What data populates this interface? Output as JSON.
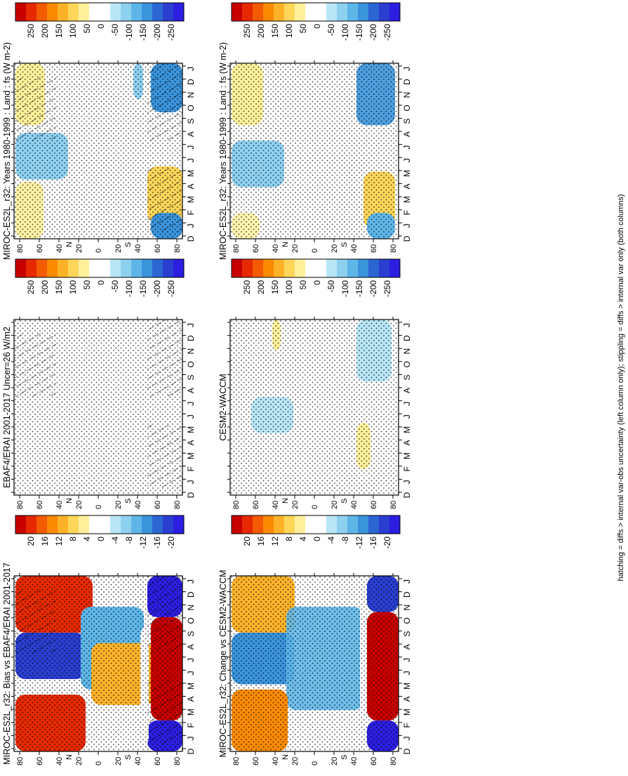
{
  "footnote": "hatching = diffs > internal var-obs uncertainty (left column only); stippling = diffs > internal var only (both columns)",
  "chart_data": [
    {
      "type": "heatmap",
      "panel": "left-top",
      "title": "MIROC-ES2L_r32: Years 1980-1999 : Land : fs (W m-2)",
      "xlabel": "",
      "ylabel": "",
      "x_ticks": [
        "D",
        "J",
        "F",
        "M",
        "A",
        "M",
        "J",
        "J",
        "A",
        "S",
        "O",
        "N",
        "D",
        "J"
      ],
      "y_ticks": [
        "80",
        "60",
        "40",
        "20",
        "0",
        "20",
        "40",
        "60",
        "80"
      ],
      "y_hemisphere_labels": [
        "N",
        "S"
      ],
      "colorbar": {
        "ticks": [
          "250",
          "200",
          "150",
          "100",
          "50",
          "0",
          "-50",
          "-100",
          "-150",
          "-200",
          "-250"
        ],
        "colors": [
          "#c80000",
          "#e52a00",
          "#f45a00",
          "#fb8a00",
          "#fdb22a",
          "#fdd65a",
          "#fef09a",
          "#ffffff",
          "#ffffff",
          "#b8e6f6",
          "#8ed0f0",
          "#5eb6e8",
          "#3a94dc",
          "#2c66d2",
          "#2a3ed0",
          "#2c1ee0"
        ]
      },
      "hatched": true,
      "stippled": true
    },
    {
      "type": "heatmap",
      "panel": "right-top",
      "title": "MIROC-ES2L_r32: Years 1980-1999 : Land : fs (W m-2)",
      "xlabel": "",
      "ylabel": "",
      "x_ticks": [
        "D",
        "J",
        "F",
        "M",
        "A",
        "M",
        "J",
        "J",
        "A",
        "S",
        "O",
        "N",
        "D",
        "J"
      ],
      "y_ticks": [
        "80",
        "60",
        "40",
        "20",
        "0",
        "20",
        "40",
        "60",
        "80"
      ],
      "y_hemisphere_labels": [
        "N",
        "S"
      ],
      "colorbar": {
        "ticks": [
          "250",
          "200",
          "150",
          "100",
          "50",
          "0",
          "-50",
          "-100",
          "-150",
          "-200",
          "-250"
        ],
        "colors": [
          "#c80000",
          "#e52a00",
          "#f45a00",
          "#fb8a00",
          "#fdb22a",
          "#fdd65a",
          "#fef09a",
          "#ffffff",
          "#ffffff",
          "#b8e6f6",
          "#8ed0f0",
          "#5eb6e8",
          "#3a94dc",
          "#2c66d2",
          "#2a3ed0",
          "#2c1ee0"
        ]
      },
      "hatched": false,
      "stippled": true
    },
    {
      "type": "heatmap",
      "panel": "left-middle",
      "title": "EBAF4/ERAI 2001-2017 Uncer=26 W/m2",
      "xlabel": "",
      "ylabel": "",
      "x_ticks": [
        "D",
        "J",
        "F",
        "M",
        "A",
        "M",
        "J",
        "J",
        "A",
        "S",
        "O",
        "N",
        "D",
        "J"
      ],
      "y_ticks": [
        "80",
        "60",
        "40",
        "20",
        "0",
        "20",
        "40",
        "60",
        "80"
      ],
      "y_hemisphere_labels": [
        "N",
        "S"
      ],
      "colorbar": {
        "ticks": [
          "250",
          "200",
          "150",
          "100",
          "50",
          "0",
          "-50",
          "-100",
          "-150",
          "-200",
          "-250"
        ],
        "colors": [
          "#c80000",
          "#e52a00",
          "#f45a00",
          "#fb8a00",
          "#fdb22a",
          "#fdd65a",
          "#fef09a",
          "#ffffff",
          "#ffffff",
          "#b8e6f6",
          "#8ed0f0",
          "#5eb6e8",
          "#3a94dc",
          "#2c66d2",
          "#2a3ed0",
          "#2c1ee0"
        ]
      },
      "hatched": true,
      "stippled": true
    },
    {
      "type": "heatmap",
      "panel": "right-middle",
      "title": "CESM2-WACCM",
      "xlabel": "",
      "ylabel": "",
      "x_ticks": [
        "D",
        "J",
        "F",
        "M",
        "A",
        "M",
        "J",
        "J",
        "A",
        "S",
        "O",
        "N",
        "D",
        "J"
      ],
      "y_ticks": [
        "80",
        "60",
        "40",
        "20",
        "0",
        "20",
        "40",
        "60",
        "80"
      ],
      "y_hemisphere_labels": [
        "N",
        "S"
      ],
      "colorbar": {
        "ticks": [
          "250",
          "200",
          "150",
          "100",
          "50",
          "0",
          "-50",
          "-100",
          "-150",
          "-200",
          "-250"
        ],
        "colors": [
          "#c80000",
          "#e52a00",
          "#f45a00",
          "#fb8a00",
          "#fdb22a",
          "#fdd65a",
          "#fef09a",
          "#ffffff",
          "#ffffff",
          "#b8e6f6",
          "#8ed0f0",
          "#5eb6e8",
          "#3a94dc",
          "#2c66d2",
          "#2a3ed0",
          "#2c1ee0"
        ]
      },
      "hatched": false,
      "stippled": true
    },
    {
      "type": "heatmap",
      "panel": "left-bottom",
      "title": "MIROC-ES2L_r32: Bias vs EBAF4/ERAI 2001-2017",
      "xlabel": "",
      "ylabel": "",
      "x_ticks": [
        "D",
        "J",
        "F",
        "M",
        "A",
        "M",
        "J",
        "J",
        "A",
        "S",
        "O",
        "N",
        "D",
        "J"
      ],
      "y_ticks": [
        "80",
        "60",
        "40",
        "20",
        "0",
        "20",
        "40",
        "60",
        "80"
      ],
      "y_hemisphere_labels": [
        "N",
        "S"
      ],
      "colorbar": {
        "ticks": [
          "20",
          "16",
          "12",
          "8",
          "4",
          "0",
          "-4",
          "-8",
          "-12",
          "-16",
          "-20"
        ],
        "colors": [
          "#c80000",
          "#e52a00",
          "#f45a00",
          "#fb8a00",
          "#fdb22a",
          "#fdd65a",
          "#fef09a",
          "#ffffff",
          "#ffffff",
          "#b8e6f6",
          "#8ed0f0",
          "#5eb6e8",
          "#3a94dc",
          "#2c66d2",
          "#2a3ed0",
          "#2c1ee0"
        ]
      },
      "hatched": true,
      "stippled": true
    },
    {
      "type": "heatmap",
      "panel": "right-bottom",
      "title": "MIROC-ES2L_r32: Change vs CESM2-WACCM",
      "xlabel": "",
      "ylabel": "",
      "x_ticks": [
        "D",
        "J",
        "F",
        "M",
        "A",
        "M",
        "J",
        "J",
        "A",
        "S",
        "O",
        "N",
        "D",
        "J"
      ],
      "y_ticks": [
        "80",
        "60",
        "40",
        "20",
        "0",
        "20",
        "40",
        "60",
        "80"
      ],
      "y_hemisphere_labels": [
        "N",
        "S"
      ],
      "colorbar": {
        "ticks": [
          "20",
          "16",
          "12",
          "8",
          "4",
          "0",
          "-4",
          "-8",
          "-12",
          "-16",
          "-20"
        ],
        "colors": [
          "#c80000",
          "#e52a00",
          "#f45a00",
          "#fb8a00",
          "#fdb22a",
          "#fdd65a",
          "#fef09a",
          "#ffffff",
          "#ffffff",
          "#b8e6f6",
          "#8ed0f0",
          "#5eb6e8",
          "#3a94dc",
          "#2c66d2",
          "#2a3ed0",
          "#2c1ee0"
        ]
      },
      "hatched": false,
      "stippled": true
    }
  ]
}
